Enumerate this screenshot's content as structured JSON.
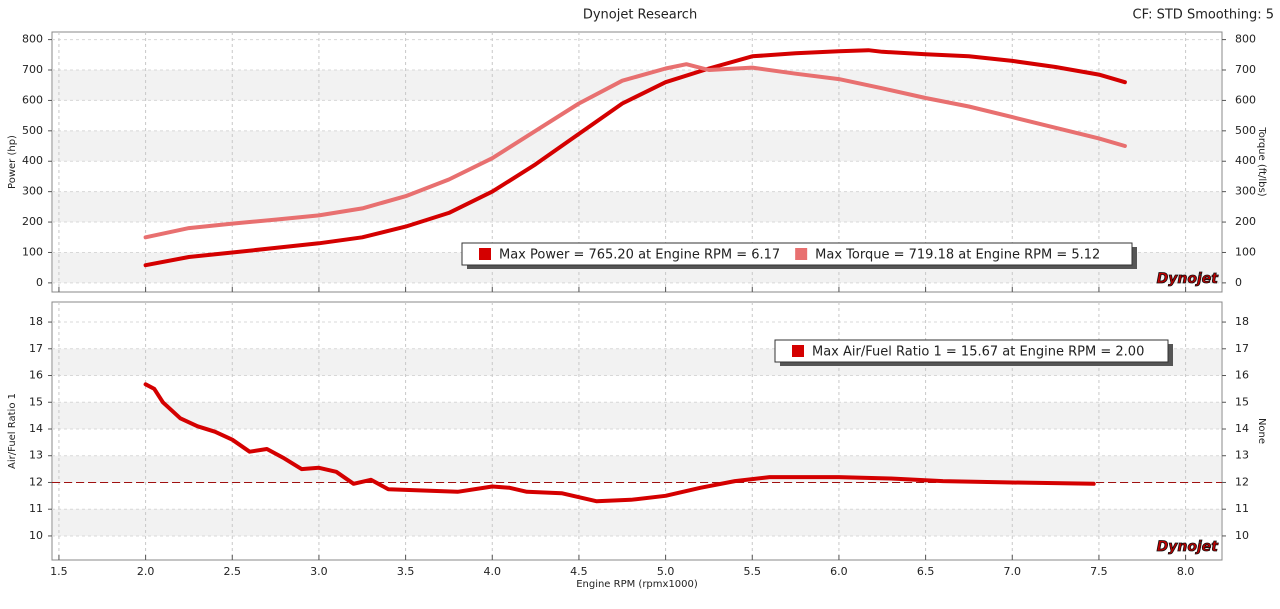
{
  "header": {
    "title": "Dynojet Research",
    "settings": "CF: STD Smoothing: 5",
    "logo": "Dynojet"
  },
  "chart_data": [
    {
      "type": "line",
      "ylabel": "Power (hp)",
      "y2label": "Torque (ft/lbs)",
      "xlim": [
        1.46,
        8.21
      ],
      "ylim": [
        -30,
        825
      ],
      "y2lim": [
        -30,
        825
      ],
      "xticks": [
        {
          "value": 1.5,
          "label": "1.5"
        },
        {
          "value": 2,
          "label": "2.0"
        },
        {
          "value": 2.5,
          "label": "2.5"
        },
        {
          "value": 3,
          "label": "3.0"
        },
        {
          "value": 3.5,
          "label": "3.5"
        },
        {
          "value": 4,
          "label": "4.0"
        },
        {
          "value": 4.5,
          "label": "4.5"
        },
        {
          "value": 5,
          "label": "5.0"
        },
        {
          "value": 5.5,
          "label": "5.5"
        },
        {
          "value": 6,
          "label": "6.0"
        },
        {
          "value": 6.5,
          "label": "6.5"
        },
        {
          "value": 7,
          "label": "7.0"
        },
        {
          "value": 7.5,
          "label": "7.5"
        },
        {
          "value": 8,
          "label": "8.0"
        }
      ],
      "yticks": [
        0,
        100,
        200,
        300,
        400,
        500,
        600,
        700,
        800
      ],
      "y2ticks": [
        0,
        100,
        200,
        300,
        400,
        500,
        600,
        700,
        800
      ],
      "grid": true,
      "bands": true,
      "legend": "lower right",
      "series": [
        {
          "name": "Max Power = 765.20 at Engine RPM = 6.17",
          "color": "#d40000",
          "x": [
            2.0,
            2.25,
            2.5,
            2.75,
            3.0,
            3.25,
            3.5,
            3.75,
            4.0,
            4.25,
            4.5,
            4.75,
            5.0,
            5.25,
            5.5,
            5.75,
            6.0,
            6.17,
            6.25,
            6.5,
            6.75,
            7.0,
            7.25,
            7.5,
            7.65
          ],
          "values": [
            58,
            85,
            100,
            115,
            130,
            150,
            185,
            230,
            300,
            390,
            490,
            590,
            660,
            705,
            745,
            755,
            762,
            765,
            760,
            752,
            745,
            730,
            710,
            685,
            660
          ]
        },
        {
          "name": "Max Torque = 719.18 at Engine RPM = 5.12",
          "color": "#e87070",
          "axis": "y2",
          "x": [
            2.0,
            2.25,
            2.5,
            2.75,
            3.0,
            3.25,
            3.5,
            3.75,
            4.0,
            4.25,
            4.5,
            4.75,
            5.0,
            5.12,
            5.25,
            5.5,
            5.75,
            6.0,
            6.25,
            6.5,
            6.75,
            7.0,
            7.25,
            7.5,
            7.65
          ],
          "values": [
            150,
            180,
            195,
            208,
            222,
            245,
            285,
            340,
            410,
            500,
            590,
            665,
            705,
            719,
            700,
            708,
            688,
            670,
            640,
            608,
            580,
            545,
            510,
            475,
            450
          ]
        }
      ]
    },
    {
      "type": "line",
      "ylabel": "Air/Fuel Ratio 1",
      "y2label": "None",
      "xlabel": "Engine RPM (rpmx1000)",
      "xlim": [
        1.46,
        8.21
      ],
      "ylim": [
        9.1,
        18.75
      ],
      "y2lim": [
        9.1,
        18.75
      ],
      "xticks": [
        {
          "value": 1.5,
          "label": "1.5"
        },
        {
          "value": 2,
          "label": "2.0"
        },
        {
          "value": 2.5,
          "label": "2.5"
        },
        {
          "value": 3,
          "label": "3.0"
        },
        {
          "value": 3.5,
          "label": "3.5"
        },
        {
          "value": 4,
          "label": "4.0"
        },
        {
          "value": 4.5,
          "label": "4.5"
        },
        {
          "value": 5,
          "label": "5.0"
        },
        {
          "value": 5.5,
          "label": "5.5"
        },
        {
          "value": 6,
          "label": "6.0"
        },
        {
          "value": 6.5,
          "label": "6.5"
        },
        {
          "value": 7,
          "label": "7.0"
        },
        {
          "value": 7.5,
          "label": "7.5"
        },
        {
          "value": 8,
          "label": "8.0"
        }
      ],
      "yticks": [
        10,
        11,
        12,
        13,
        14,
        15,
        16,
        17,
        18
      ],
      "y2ticks": [
        10,
        11,
        12,
        13,
        14,
        15,
        16,
        17,
        18
      ],
      "grid": true,
      "bands": true,
      "legend": "upper right",
      "hline": 12,
      "series": [
        {
          "name": "Max Air/Fuel Ratio 1 = 15.67 at Engine RPM = 2.00",
          "color": "#d40000",
          "x": [
            2.0,
            2.05,
            2.1,
            2.2,
            2.3,
            2.4,
            2.5,
            2.6,
            2.7,
            2.8,
            2.9,
            3.0,
            3.1,
            3.2,
            3.3,
            3.4,
            3.6,
            3.8,
            4.0,
            4.1,
            4.2,
            4.4,
            4.6,
            4.8,
            5.0,
            5.2,
            5.4,
            5.6,
            6.0,
            6.3,
            6.6,
            7.0,
            7.47
          ],
          "values": [
            15.67,
            15.5,
            15.0,
            14.4,
            14.1,
            13.9,
            13.6,
            13.15,
            13.25,
            12.9,
            12.5,
            12.55,
            12.4,
            11.95,
            12.1,
            11.75,
            11.7,
            11.65,
            11.85,
            11.8,
            11.65,
            11.6,
            11.3,
            11.35,
            11.5,
            11.8,
            12.05,
            12.2,
            12.2,
            12.15,
            12.05,
            12.0,
            11.95
          ]
        }
      ]
    }
  ]
}
